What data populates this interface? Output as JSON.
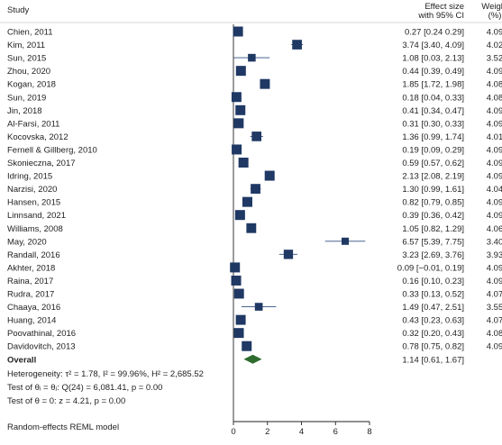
{
  "chart_data": {
    "type": "forest",
    "headers": {
      "study": "Study",
      "effect_line1": "Effect size",
      "effect_line2": "with 95% CI",
      "weight_line1": "Weight",
      "weight_line2": "(%)"
    },
    "studies": [
      {
        "name": "Chien, 2011",
        "es": 0.27,
        "lo": 0.24,
        "hi": 0.29,
        "ci_text": "0.27 [0.24 0.29]",
        "weight": "4.09"
      },
      {
        "name": "Kim, 2011",
        "es": 3.74,
        "lo": 3.4,
        "hi": 4.09,
        "ci_text": "3.74 [3.40, 4.09]",
        "weight": "4.02"
      },
      {
        "name": "Sun, 2015",
        "es": 1.08,
        "lo": 0.03,
        "hi": 2.13,
        "ci_text": "1.08 [0.03, 2.13]",
        "weight": "3.52"
      },
      {
        "name": "Zhou, 2020",
        "es": 0.44,
        "lo": 0.39,
        "hi": 0.49,
        "ci_text": "0.44 [0.39, 0.49]",
        "weight": "4.09"
      },
      {
        "name": "Kogan, 2018",
        "es": 1.85,
        "lo": 1.72,
        "hi": 1.98,
        "ci_text": "1.85 [1.72, 1.98]",
        "weight": "4.08"
      },
      {
        "name": "Sun, 2019",
        "es": 0.18,
        "lo": 0.04,
        "hi": 0.33,
        "ci_text": "0.18 [0.04, 0.33]",
        "weight": "4.08"
      },
      {
        "name": "Jin, 2018",
        "es": 0.41,
        "lo": 0.34,
        "hi": 0.47,
        "ci_text": "0.41 [0.34, 0.47]",
        "weight": "4.09"
      },
      {
        "name": "Al-Farsi, 2011",
        "es": 0.31,
        "lo": 0.3,
        "hi": 0.33,
        "ci_text": "0.31 [0.30, 0.33]",
        "weight": "4.09"
      },
      {
        "name": "Kocovska, 2012",
        "es": 1.36,
        "lo": 0.99,
        "hi": 1.74,
        "ci_text": "1.36 [0.99, 1.74]",
        "weight": "4.01"
      },
      {
        "name": "Fernell & Gillberg, 2010",
        "es": 0.19,
        "lo": 0.09,
        "hi": 0.29,
        "ci_text": "0.19 [0.09, 0.29]",
        "weight": "4.09"
      },
      {
        "name": "Skonieczna, 2017",
        "es": 0.59,
        "lo": 0.57,
        "hi": 0.62,
        "ci_text": "0.59 [0.57, 0.62]",
        "weight": "4.09"
      },
      {
        "name": "Idring, 2015",
        "es": 2.13,
        "lo": 2.08,
        "hi": 2.19,
        "ci_text": "2.13 [2.08, 2.19]",
        "weight": "4.09"
      },
      {
        "name": "Narzisi, 2020",
        "es": 1.3,
        "lo": 0.99,
        "hi": 1.61,
        "ci_text": "1.30 [0.99, 1.61]",
        "weight": "4.04"
      },
      {
        "name": "Hansen, 2015",
        "es": 0.82,
        "lo": 0.79,
        "hi": 0.85,
        "ci_text": "0.82 [0.79, 0.85]",
        "weight": "4.09"
      },
      {
        "name": "Linnsand, 2021",
        "es": 0.39,
        "lo": 0.36,
        "hi": 0.42,
        "ci_text": "0.39 [0.36, 0.42]",
        "weight": "4.09"
      },
      {
        "name": "Williams, 2008",
        "es": 1.05,
        "lo": 0.82,
        "hi": 1.29,
        "ci_text": "1.05 [0.82, 1.29]",
        "weight": "4.06"
      },
      {
        "name": "May, 2020",
        "es": 6.57,
        "lo": 5.39,
        "hi": 7.75,
        "ci_text": "6.57 [5.39, 7.75]",
        "weight": "3.40"
      },
      {
        "name": "Randall, 2016",
        "es": 3.23,
        "lo": 2.69,
        "hi": 3.76,
        "ci_text": "3.23 [2.69, 3.76]",
        "weight": "3.93"
      },
      {
        "name": "Akhter, 2018",
        "es": 0.09,
        "lo": -0.01,
        "hi": 0.19,
        "ci_text": "0.09 [−0.01, 0.19]",
        "weight": "4.09"
      },
      {
        "name": "Raina, 2017",
        "es": 0.16,
        "lo": 0.1,
        "hi": 0.23,
        "ci_text": "0.16 [0.10, 0.23]",
        "weight": "4.09"
      },
      {
        "name": "Rudra, 2017",
        "es": 0.33,
        "lo": 0.13,
        "hi": 0.52,
        "ci_text": "0.33 [0.13, 0.52]",
        "weight": "4.07"
      },
      {
        "name": "Chaaya, 2016",
        "es": 1.49,
        "lo": 0.47,
        "hi": 2.51,
        "ci_text": "1.49 [0.47, 2.51]",
        "weight": "3.55"
      },
      {
        "name": "Huang, 2014",
        "es": 0.43,
        "lo": 0.23,
        "hi": 0.63,
        "ci_text": "0.43 [0.23, 0.63]",
        "weight": "4.07"
      },
      {
        "name": "Poovathinal, 2016",
        "es": 0.32,
        "lo": 0.2,
        "hi": 0.43,
        "ci_text": "0.32 [0.20, 0.43]",
        "weight": "4.08"
      },
      {
        "name": "Davidovitch, 2013",
        "es": 0.78,
        "lo": 0.75,
        "hi": 0.82,
        "ci_text": "0.78 [0.75, 0.82]",
        "weight": "4.09"
      }
    ],
    "overall": {
      "label": "Overall",
      "es": 1.14,
      "lo": 0.61,
      "hi": 1.67,
      "ci_text": "1.14 [0.61, 1.67]"
    },
    "stats": {
      "heterogeneity": "Heterogeneity: τ² = 1.78, I² = 99.96%, H² = 2,685.52",
      "test_theta_i": "Test of θᵢ = θⱼ: Q(24) = 6,081.41, p = 0.00",
      "test_theta": "Test of θ = 0: z = 4.21, p = 0.00"
    },
    "model_note": "Random-effects REML model",
    "x_ticks": [
      0,
      2,
      4,
      6,
      8
    ],
    "xlim": [
      0,
      8
    ],
    "null_line": 0,
    "colors": {
      "marker": "#1f3864",
      "diamond": "#2e6b2e",
      "ci_line": "#2f4f7f"
    }
  }
}
